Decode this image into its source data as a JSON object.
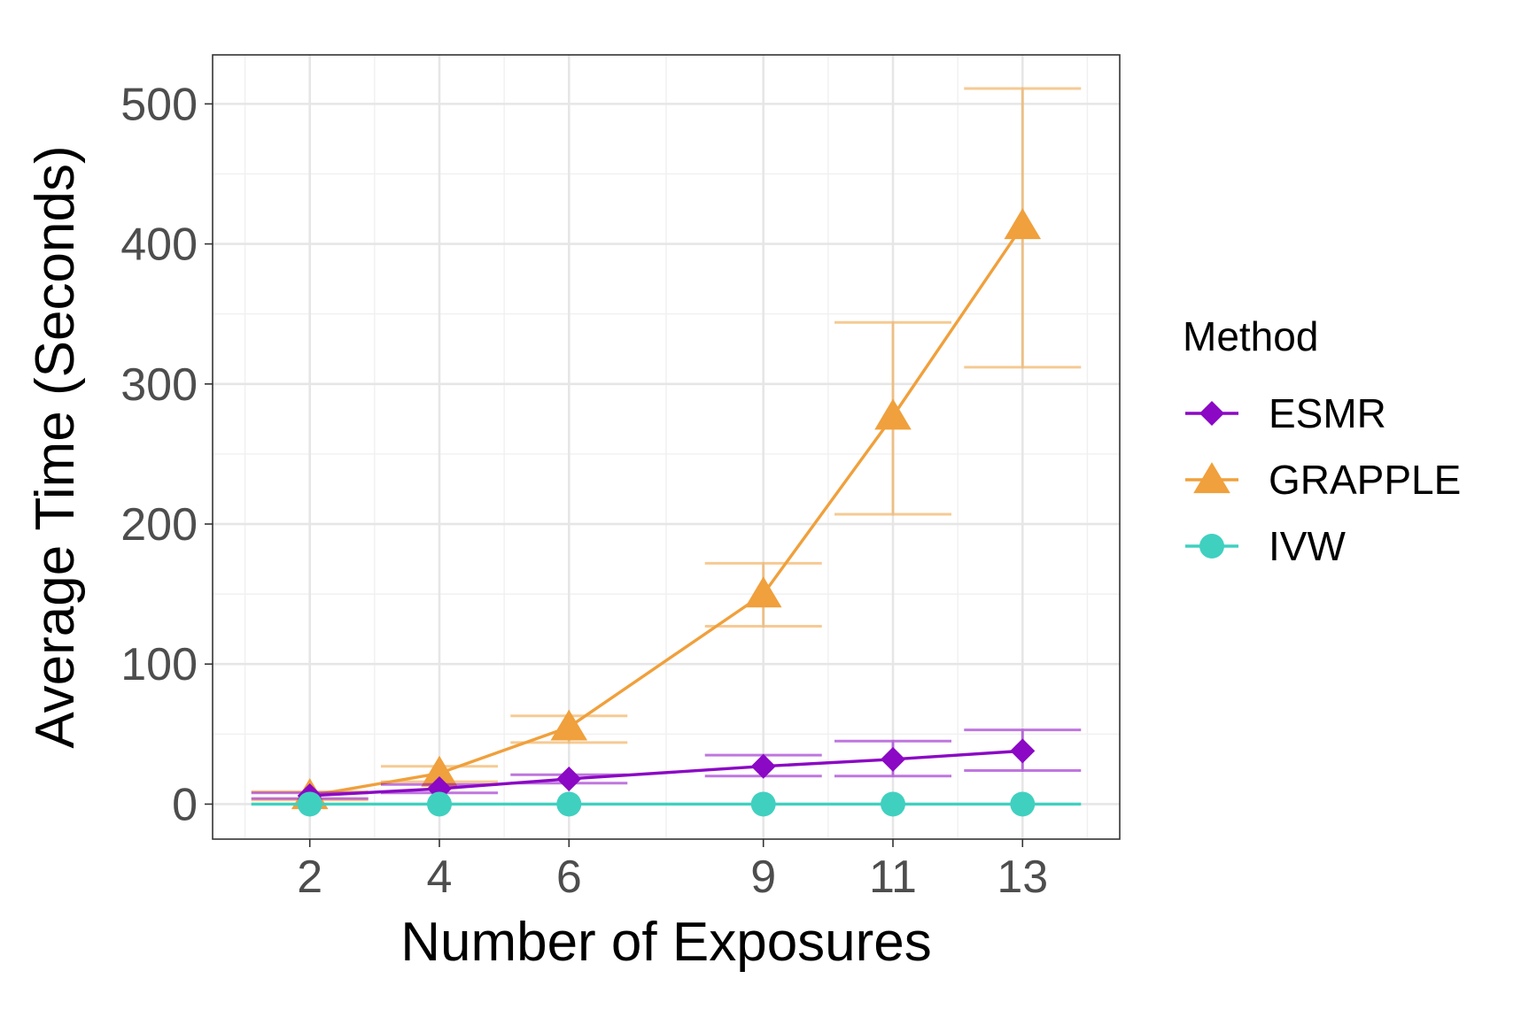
{
  "chart_data": {
    "type": "line",
    "title": "",
    "xlabel": "Number of Exposures",
    "ylabel": "Average Time (Seconds)",
    "x": [
      2,
      4,
      6,
      9,
      11,
      13
    ],
    "x_ticks": [
      2,
      4,
      6,
      9,
      11,
      13
    ],
    "xlim": [
      0.5,
      14.5
    ],
    "ylim": [
      -25,
      535
    ],
    "y_ticks": [
      0,
      100,
      200,
      300,
      400,
      500
    ],
    "grid": true,
    "legend_position": "right",
    "legend_title": "Method",
    "series": [
      {
        "name": "ESMR",
        "color": "#8B08C4",
        "marker": "diamond",
        "values": [
          6,
          11,
          18,
          27,
          32,
          38
        ],
        "error_low": [
          4,
          8,
          15,
          20,
          20,
          24
        ],
        "error_high": [
          8,
          14,
          21,
          35,
          45,
          53
        ]
      },
      {
        "name": "GRAPPLE",
        "color": "#F0A03C",
        "marker": "triangle",
        "values": [
          6,
          22,
          55,
          150,
          277,
          413
        ],
        "error_low": [
          3,
          16,
          44,
          127,
          207,
          312
        ],
        "error_high": [
          9,
          27,
          63,
          172,
          344,
          511
        ]
      },
      {
        "name": "IVW",
        "color": "#40D0C0",
        "marker": "circle",
        "values": [
          0,
          0,
          0,
          0,
          0,
          0
        ],
        "error_low": [
          0,
          0,
          0,
          0,
          0,
          0
        ],
        "error_high": [
          0,
          0,
          0,
          0,
          0,
          0
        ]
      }
    ]
  }
}
